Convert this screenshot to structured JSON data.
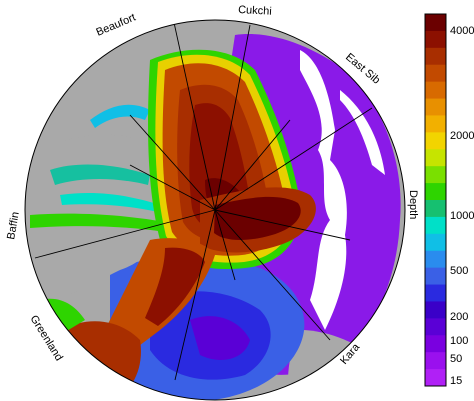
{
  "map": {
    "regions": {
      "beaufort": "Beaufort",
      "cukchi": "Cukchi",
      "east_sib": "East Sib",
      "baffin": "Baffin",
      "greenland": "Greenland",
      "kara": "Kara"
    },
    "colors": {
      "land": "#a9a9a9",
      "ice_free": "#ffffff",
      "outline": "#000000"
    }
  },
  "colorbar": {
    "title": "Depth",
    "ticks": [
      "4000",
      "2000",
      "1000",
      "500",
      "200",
      "100",
      "50",
      "15"
    ],
    "colors": [
      "#6b0000",
      "#8c1000",
      "#a82e00",
      "#c24a00",
      "#d86a00",
      "#e89000",
      "#f2b000",
      "#f2d400",
      "#c6e400",
      "#7ae000",
      "#2ed400",
      "#16c070",
      "#00e0c8",
      "#10bfe6",
      "#2a8cee",
      "#3a60e6",
      "#2a2ae0",
      "#3a00c8",
      "#5a00d6",
      "#7a00e0",
      "#9a10ee",
      "#b020f6"
    ]
  }
}
